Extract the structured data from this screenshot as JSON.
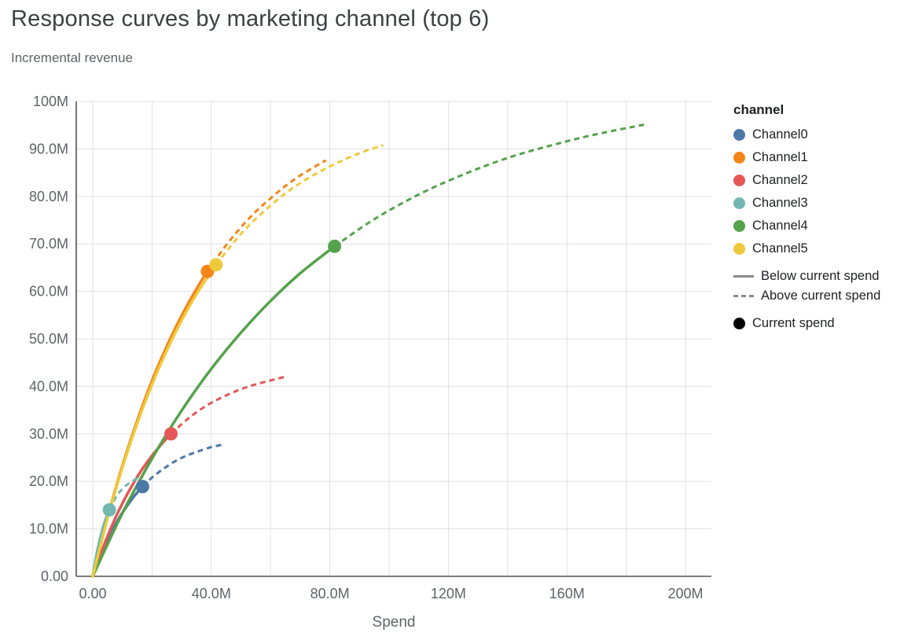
{
  "chart_data": {
    "type": "line",
    "title": "Response curves by marketing channel (top 6)",
    "subtitle": "Incremental revenue",
    "xlabel": "Spend",
    "ylabel": "Incremental revenue",
    "x_unit": "millions",
    "y_unit": "millions",
    "xlim": [
      0,
      208
    ],
    "ylim": [
      0,
      100
    ],
    "x_ticks": [
      {
        "value": 0,
        "label": "0.00"
      },
      {
        "value": 40,
        "label": "40.0M"
      },
      {
        "value": 80,
        "label": "80.0M"
      },
      {
        "value": 120,
        "label": "120M"
      },
      {
        "value": 160,
        "label": "160M"
      },
      {
        "value": 200,
        "label": "200M"
      }
    ],
    "y_ticks": [
      {
        "value": 0,
        "label": "0.00"
      },
      {
        "value": 10,
        "label": "10.0M"
      },
      {
        "value": 20,
        "label": "20.0M"
      },
      {
        "value": 30,
        "label": "30.0M"
      },
      {
        "value": 40,
        "label": "40.0M"
      },
      {
        "value": 50,
        "label": "50.0M"
      },
      {
        "value": 60,
        "label": "60.0M"
      },
      {
        "value": 70,
        "label": "70.0M"
      },
      {
        "value": 80,
        "label": "80.0M"
      },
      {
        "value": 90,
        "label": "90.0M"
      },
      {
        "value": 100,
        "label": "100M"
      }
    ],
    "grid": {
      "x_values": [
        0,
        20,
        40,
        60,
        80,
        100,
        120,
        140,
        160,
        180,
        200
      ],
      "y_values": [
        10,
        20,
        30,
        40,
        50,
        60,
        70,
        80,
        90,
        100
      ]
    },
    "colors": {
      "grid": "#e0e0e0",
      "axis": "#545454",
      "tick_label": "#5f6368",
      "title": "#3c4043",
      "subtitle": "#5f6368",
      "legend_line": "#8a8a8a",
      "current_spend_marker": "#000000"
    },
    "legend": {
      "title": "channel",
      "style_entries": [
        {
          "style": "solid",
          "label": "Below current spend"
        },
        {
          "style": "dashed",
          "label": "Above current spend"
        }
      ],
      "marker_label": "Current spend",
      "position": "right"
    },
    "series": [
      {
        "name": "Channel0",
        "color": "#4c78a8",
        "current_spend": {
          "x": 16.8,
          "y": 18.9
        },
        "solid": [
          [
            0,
            0
          ],
          [
            2,
            3.4
          ],
          [
            4,
            6.3
          ],
          [
            6,
            9.0
          ],
          [
            8,
            11.3
          ],
          [
            10,
            13.4
          ],
          [
            12,
            15.2
          ],
          [
            14,
            16.9
          ],
          [
            16.8,
            18.9
          ]
        ],
        "dashed": [
          [
            16.8,
            18.9
          ],
          [
            20,
            20.8
          ],
          [
            24,
            22.7
          ],
          [
            28,
            24.3
          ],
          [
            32,
            25.5
          ],
          [
            36,
            26.4
          ],
          [
            40,
            27.2
          ],
          [
            43.5,
            27.7
          ]
        ]
      },
      {
        "name": "Channel1",
        "color": "#f58518",
        "current_spend": {
          "x": 38.7,
          "y": 64.2
        },
        "solid": [
          [
            0,
            0
          ],
          [
            5,
            12.4
          ],
          [
            10,
            23.3
          ],
          [
            15,
            32.8
          ],
          [
            20,
            41.2
          ],
          [
            25,
            48.5
          ],
          [
            30,
            54.9
          ],
          [
            35,
            60.5
          ],
          [
            38.7,
            64.2
          ]
        ],
        "dashed": [
          [
            38.7,
            64.2
          ],
          [
            45,
            69.7
          ],
          [
            50,
            73.5
          ],
          [
            55,
            76.8
          ],
          [
            60,
            79.6
          ],
          [
            65,
            82.2
          ],
          [
            70,
            84.4
          ],
          [
            75,
            86.3
          ],
          [
            78.7,
            87.6
          ]
        ]
      },
      {
        "name": "Channel2",
        "color": "#e45756",
        "current_spend": {
          "x": 26.4,
          "y": 30.0
        },
        "solid": [
          [
            0,
            0
          ],
          [
            4,
            6.9
          ],
          [
            8,
            12.8
          ],
          [
            12,
            17.7
          ],
          [
            16,
            21.9
          ],
          [
            20,
            25.4
          ],
          [
            24,
            28.4
          ],
          [
            26.4,
            30.0
          ]
        ],
        "dashed": [
          [
            26.4,
            30.0
          ],
          [
            32,
            33.1
          ],
          [
            38,
            35.8
          ],
          [
            44,
            37.8
          ],
          [
            50,
            39.4
          ],
          [
            56,
            40.6
          ],
          [
            64.8,
            42.0
          ]
        ]
      },
      {
        "name": "Channel3",
        "color": "#72b7b2",
        "current_spend": {
          "x": 5.6,
          "y": 14.0
        },
        "solid": [
          [
            0,
            0
          ],
          [
            1,
            3.7
          ],
          [
            2,
            6.7
          ],
          [
            3,
            9.2
          ],
          [
            4,
            11.4
          ],
          [
            5,
            13.1
          ],
          [
            5.6,
            14.0
          ]
        ],
        "dashed": [
          [
            5.6,
            14.0
          ],
          [
            7,
            15.8
          ],
          [
            9,
            17.7
          ],
          [
            11,
            19.0
          ],
          [
            13,
            19.9
          ],
          [
            15,
            20.6
          ],
          [
            17,
            21.0
          ]
        ]
      },
      {
        "name": "Channel4",
        "color": "#54a24b",
        "current_spend": {
          "x": 81.6,
          "y": 69.5
        },
        "solid": [
          [
            0,
            0
          ],
          [
            10,
            13.3
          ],
          [
            20,
            24.8
          ],
          [
            30,
            34.9
          ],
          [
            40,
            43.7
          ],
          [
            50,
            51.3
          ],
          [
            60,
            58.0
          ],
          [
            70,
            63.8
          ],
          [
            81.6,
            69.5
          ]
        ],
        "dashed": [
          [
            81.6,
            69.5
          ],
          [
            95,
            75.2
          ],
          [
            110,
            80.4
          ],
          [
            125,
            84.6
          ],
          [
            140,
            88.1
          ],
          [
            155,
            90.8
          ],
          [
            170,
            93.1
          ],
          [
            186,
            95.1
          ]
        ]
      },
      {
        "name": "Channel5",
        "color": "#eeca3b",
        "current_spend": {
          "x": 41.6,
          "y": 65.6
        },
        "solid": [
          [
            0,
            0
          ],
          [
            5,
            12.2
          ],
          [
            10,
            22.9
          ],
          [
            15,
            32.2
          ],
          [
            20,
            40.4
          ],
          [
            25,
            47.6
          ],
          [
            30,
            53.9
          ],
          [
            35,
            59.4
          ],
          [
            41.6,
            65.6
          ]
        ],
        "dashed": [
          [
            41.6,
            65.6
          ],
          [
            50,
            72.1
          ],
          [
            58,
            77.0
          ],
          [
            66,
            81.1
          ],
          [
            74,
            84.3
          ],
          [
            82,
            86.9
          ],
          [
            90,
            89.1
          ],
          [
            98,
            90.8
          ]
        ]
      }
    ]
  }
}
